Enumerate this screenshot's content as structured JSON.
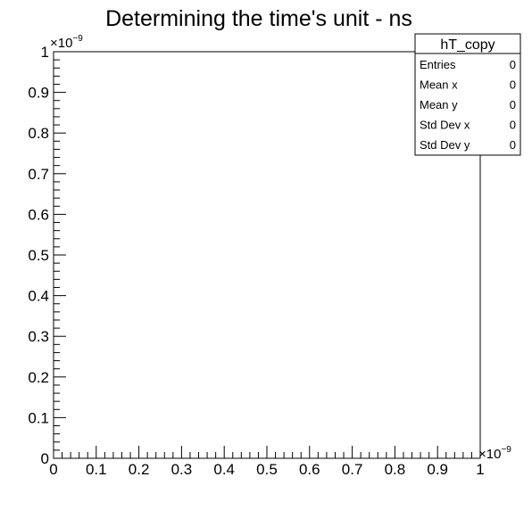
{
  "chart_data": {
    "type": "scatter",
    "title": "Determining the time's unit - ns",
    "xlabel": "",
    "ylabel": "",
    "xlim": [
      0,
      1
    ],
    "ylim": [
      0,
      1
    ],
    "x_ticks": [
      "0",
      "0.1",
      "0.2",
      "0.3",
      "0.4",
      "0.5",
      "0.6",
      "0.7",
      "0.8",
      "0.9",
      "1"
    ],
    "y_ticks": [
      "0",
      "0.1",
      "0.2",
      "0.3",
      "0.4",
      "0.5",
      "0.6",
      "0.7",
      "0.8",
      "0.9",
      "1"
    ],
    "x_exponent": {
      "base": "×10",
      "power": "−9"
    },
    "y_exponent": {
      "base": "×10",
      "power": "−9"
    },
    "series": [],
    "grid": false,
    "stats_box": {
      "name": "hT_copy",
      "placement": "top-right",
      "rows": [
        {
          "label": "Entries",
          "value": "0"
        },
        {
          "label": "Mean x",
          "value": "0"
        },
        {
          "label": "Mean y",
          "value": "0"
        },
        {
          "label": "Std Dev x",
          "value": "0"
        },
        {
          "label": "Std Dev y",
          "value": "0"
        }
      ]
    }
  }
}
